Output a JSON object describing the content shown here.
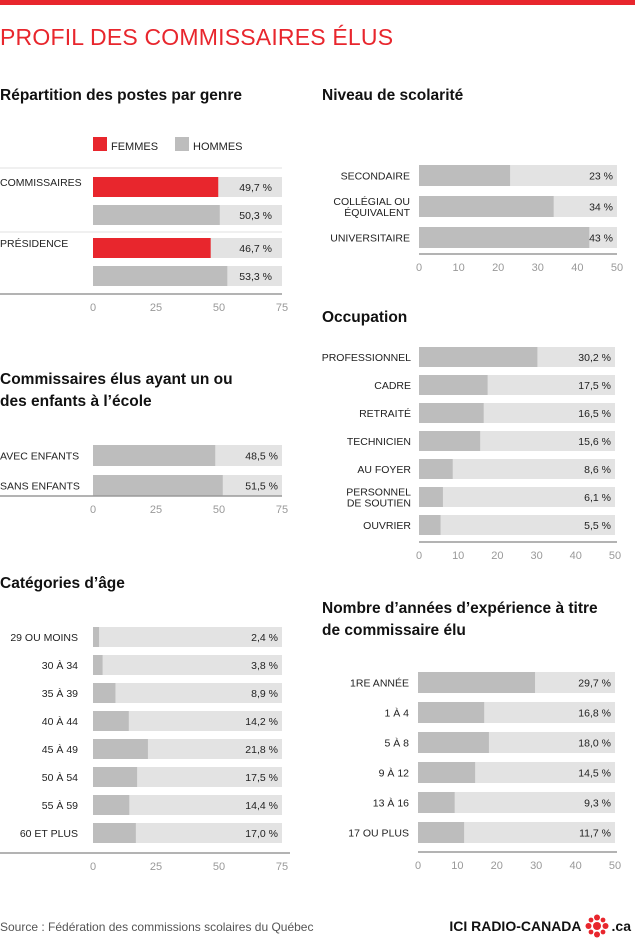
{
  "title": "PROFIL DES COMMISSAIRES ÉLUS",
  "source": "Source : Fédération des commissions scolaires du Québec",
  "logo": {
    "left": "ICI RADIO-CANADA",
    "right": ".ca"
  },
  "colors": {
    "accent": "#e8262d",
    "bar": "#bdbdbd",
    "track": "#e3e3e3"
  },
  "chart_data": [
    {
      "id": "genre",
      "type": "bar",
      "title": "Répartition des postes par genre",
      "legend": [
        {
          "name": "FEMMES",
          "color": "#e8262d"
        },
        {
          "name": "HOMMES",
          "color": "#bdbdbd"
        }
      ],
      "groups": [
        {
          "category": "COMMISSAIRES",
          "values": [
            49.7,
            50.3
          ],
          "labels": [
            "49,7 %",
            "50,3 %"
          ]
        },
        {
          "category": "PRÉSIDENCE",
          "values": [
            46.7,
            53.3
          ],
          "labels": [
            "46,7 %",
            "53,3 %"
          ]
        }
      ],
      "xlim": [
        0,
        75
      ],
      "ticks": [
        0,
        25,
        50,
        75
      ]
    },
    {
      "id": "enfants",
      "type": "bar",
      "title": "Commissaires élus ayant un ou des enfants à l’école",
      "categories": [
        "AVEC ENFANTS",
        "SANS ENFANTS"
      ],
      "values": [
        48.5,
        51.5
      ],
      "labels": [
        "48,5 %",
        "51,5 %"
      ],
      "xlim": [
        0,
        75
      ],
      "ticks": [
        0,
        25,
        50,
        75
      ]
    },
    {
      "id": "age",
      "type": "bar",
      "title": "Catégories d’âge",
      "categories": [
        "29 OU MOINS",
        "30 À 34",
        "35 À 39",
        "40 À 44",
        "45 À 49",
        "50 À 54",
        "55 À 59",
        "60 ET PLUS"
      ],
      "values": [
        2.4,
        3.8,
        8.9,
        14.2,
        21.8,
        17.5,
        14.4,
        17.0
      ],
      "labels": [
        "2,4 %",
        "3,8 %",
        "8,9 %",
        "14,2 %",
        "21,8 %",
        "17,5 %",
        "14,4 %",
        "17,0 %"
      ],
      "xlim": [
        0,
        75
      ],
      "ticks": [
        0,
        25,
        50,
        75
      ]
    },
    {
      "id": "scolarite",
      "type": "bar",
      "title": "Niveau de scolarité",
      "categories": [
        "SECONDAIRE",
        "COLLÉGIAL OU ÉQUIVALENT",
        "UNIVERSITAIRE"
      ],
      "values": [
        23,
        34,
        43
      ],
      "labels": [
        "23 %",
        "34 %",
        "43 %"
      ],
      "xlim": [
        0,
        50
      ],
      "ticks": [
        0,
        10,
        20,
        30,
        40,
        50
      ]
    },
    {
      "id": "occupation",
      "type": "bar",
      "title": "Occupation",
      "categories": [
        "PROFESSIONNEL",
        "CADRE",
        "RETRAITÉ",
        "TECHNICIEN",
        "AU FOYER",
        "PERSONNEL DE SOUTIEN",
        "OUVRIER"
      ],
      "values": [
        30.2,
        17.5,
        16.5,
        15.6,
        8.6,
        6.1,
        5.5
      ],
      "labels": [
        "30,2 %",
        "17,5 %",
        "16,5 %",
        "15,6 %",
        "8,6 %",
        "6,1 %",
        "5,5 %"
      ],
      "xlim": [
        0,
        50
      ],
      "ticks": [
        0,
        10,
        20,
        30,
        40,
        50
      ]
    },
    {
      "id": "experience",
      "type": "bar",
      "title": "Nombre d’années d’expérience à titre de commissaire élu",
      "categories": [
        "1RE ANNÉE",
        "1 À 4",
        "5 À 8",
        "9 À 12",
        "13 À 16",
        "17 OU PLUS"
      ],
      "values": [
        29.7,
        16.8,
        18.0,
        14.5,
        9.3,
        11.7
      ],
      "labels": [
        "29,7 %",
        "16,8 %",
        "18,0 %",
        "14,5 %",
        "9,3 %",
        "11,7 %"
      ],
      "xlim": [
        0,
        50
      ],
      "ticks": [
        0,
        10,
        20,
        30,
        40,
        50
      ]
    }
  ]
}
